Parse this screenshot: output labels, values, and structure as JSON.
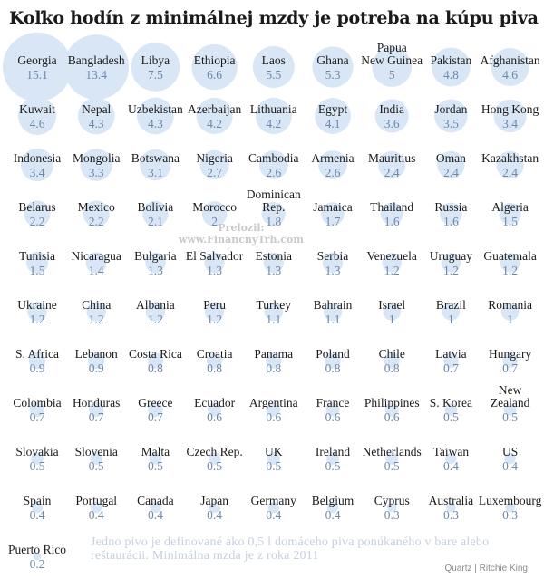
{
  "chart_data": {
    "type": "bubble",
    "title": "Koľko hodín z minimálnej mzdy je potreba na kúpu piva",
    "colors": {
      "bubble": "#d9e6f6",
      "value_text": "#6d87aa",
      "label_text": "#1a1a1a"
    },
    "items": [
      {
        "country": "Georgia",
        "value": "15.1"
      },
      {
        "country": "Bangladesh",
        "value": "13.4"
      },
      {
        "country": "Libya",
        "value": "7.5"
      },
      {
        "country": "Ethiopia",
        "value": "6.6"
      },
      {
        "country": "Laos",
        "value": "5.5"
      },
      {
        "country": "Ghana",
        "value": "5.3"
      },
      {
        "country": "Papua New Guinea",
        "value": "5"
      },
      {
        "country": "Pakistan",
        "value": "4.8"
      },
      {
        "country": "Afghanistan",
        "value": "4.6"
      },
      {
        "country": "Kuwait",
        "value": "4.6"
      },
      {
        "country": "Nepal",
        "value": "4.3"
      },
      {
        "country": "Uzbekistan",
        "value": "4.3"
      },
      {
        "country": "Azerbaijan",
        "value": "4.2"
      },
      {
        "country": "Lithuania",
        "value": "4.2"
      },
      {
        "country": "Egypt",
        "value": "4.1"
      },
      {
        "country": "India",
        "value": "3.6"
      },
      {
        "country": "Jordan",
        "value": "3.5"
      },
      {
        "country": "Hong Kong",
        "value": "3.4"
      },
      {
        "country": "Indonesia",
        "value": "3.4"
      },
      {
        "country": "Mongolia",
        "value": "3.3"
      },
      {
        "country": "Botswana",
        "value": "3.1"
      },
      {
        "country": "Nigeria",
        "value": "2.7"
      },
      {
        "country": "Cambodia",
        "value": "2.6"
      },
      {
        "country": "Armenia",
        "value": "2.6"
      },
      {
        "country": "Mauritius",
        "value": "2.4"
      },
      {
        "country": "Oman",
        "value": "2.4"
      },
      {
        "country": "Kazakhstan",
        "value": "2.4"
      },
      {
        "country": "Belarus",
        "value": "2.2"
      },
      {
        "country": "Mexico",
        "value": "2.2"
      },
      {
        "country": "Bolivia",
        "value": "2.1"
      },
      {
        "country": "Morocco",
        "value": "2"
      },
      {
        "country": "Dominican Rep.",
        "value": "1.8"
      },
      {
        "country": "Jamaica",
        "value": "1.7"
      },
      {
        "country": "Thailand",
        "value": "1.6"
      },
      {
        "country": "Russia",
        "value": "1.6"
      },
      {
        "country": "Algeria",
        "value": "1.5"
      },
      {
        "country": "Tunisia",
        "value": "1.5"
      },
      {
        "country": "Nicaragua",
        "value": "1.4"
      },
      {
        "country": "Bulgaria",
        "value": "1.3"
      },
      {
        "country": "El Salvador",
        "value": "1.3"
      },
      {
        "country": "Estonia",
        "value": "1.3"
      },
      {
        "country": "Serbia",
        "value": "1.3"
      },
      {
        "country": "Venezuela",
        "value": "1.2"
      },
      {
        "country": "Uruguay",
        "value": "1.2"
      },
      {
        "country": "Guatemala",
        "value": "1.2"
      },
      {
        "country": "Ukraine",
        "value": "1.2"
      },
      {
        "country": "China",
        "value": "1.2"
      },
      {
        "country": "Albania",
        "value": "1.2"
      },
      {
        "country": "Peru",
        "value": "1.2"
      },
      {
        "country": "Turkey",
        "value": "1.1"
      },
      {
        "country": "Bahrain",
        "value": "1.1"
      },
      {
        "country": "Israel",
        "value": "1"
      },
      {
        "country": "Brazil",
        "value": "1"
      },
      {
        "country": "Romania",
        "value": "1"
      },
      {
        "country": "S. Africa",
        "value": "0.9"
      },
      {
        "country": "Lebanon",
        "value": "0.9"
      },
      {
        "country": "Costa Rica",
        "value": "0.8"
      },
      {
        "country": "Croatia",
        "value": "0.8"
      },
      {
        "country": "Panama",
        "value": "0.8"
      },
      {
        "country": "Poland",
        "value": "0.8"
      },
      {
        "country": "Chile",
        "value": "0.8"
      },
      {
        "country": "Latvia",
        "value": "0.7"
      },
      {
        "country": "Hungary",
        "value": "0.7"
      },
      {
        "country": "Colombia",
        "value": "0.7"
      },
      {
        "country": "Honduras",
        "value": "0.7"
      },
      {
        "country": "Greece",
        "value": "0.7"
      },
      {
        "country": "Ecuador",
        "value": "0.6"
      },
      {
        "country": "Argentina",
        "value": "0.6"
      },
      {
        "country": "France",
        "value": "0.6"
      },
      {
        "country": "Philippines",
        "value": "0.6"
      },
      {
        "country": "S. Korea",
        "value": "0.5"
      },
      {
        "country": "New Zealand",
        "value": "0.5"
      },
      {
        "country": "Slovakia",
        "value": "0.5"
      },
      {
        "country": "Slovenia",
        "value": "0.5"
      },
      {
        "country": "Malta",
        "value": "0.5"
      },
      {
        "country": "Czech Rep.",
        "value": "0.5"
      },
      {
        "country": "UK",
        "value": "0.5"
      },
      {
        "country": "Ireland",
        "value": "0.5"
      },
      {
        "country": "Netherlands",
        "value": "0.5"
      },
      {
        "country": "Taiwan",
        "value": "0.4"
      },
      {
        "country": "US",
        "value": "0.4"
      },
      {
        "country": "Spain",
        "value": "0.4"
      },
      {
        "country": "Portugal",
        "value": "0.4"
      },
      {
        "country": "Canada",
        "value": "0.4"
      },
      {
        "country": "Japan",
        "value": "0.4"
      },
      {
        "country": "Germany",
        "value": "0.4"
      },
      {
        "country": "Belgium",
        "value": "0.4"
      },
      {
        "country": "Cyprus",
        "value": "0.3"
      },
      {
        "country": "Australia",
        "value": "0.3"
      },
      {
        "country": "Luxembourg",
        "value": "0.3"
      },
      {
        "country": "Puerto Rico",
        "value": "0.2"
      }
    ]
  },
  "watermark": {
    "line1": "Prelozil:",
    "line2": "www.FinancnyTrh.com"
  },
  "footnote": "Jedno pivo je definované ako 0,5 l domáceho piva ponúkaného v bare alebo reštaurácii. Minimálna mzda je z roka 2011",
  "source": "Quartz | Ritchie King"
}
